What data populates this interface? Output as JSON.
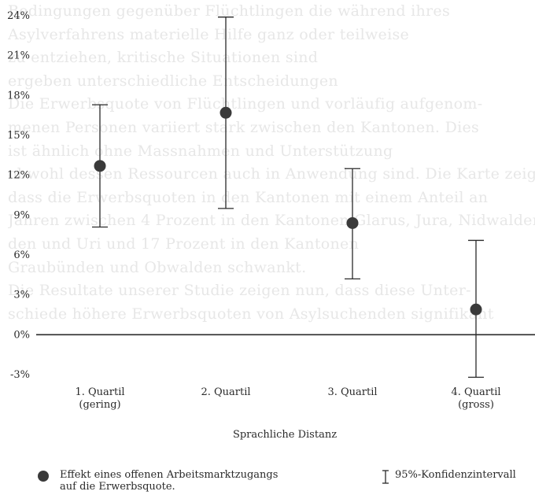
{
  "background_text": [
    "Bedingungen gegenüber Flüchtlingen die während ihres",
    "Asylverfahrens materielle Hilfe ganz oder teilweise",
    "zu entziehen, kritische Situationen sind",
    "ergeben unterschiedliche Entscheidungen",
    "Die Erwerbsquote von Flüchtlingen und vorläufig aufgenom-",
    "menen Personen variiert stark zwischen den Kantonen. Dies",
    "ist ähnlich ohne Massnahmen und Unterstützung",
    "obwohl dessen Ressourcen auch in Anwendung sind. Die Karte zeigt,",
    "dass die Erwerbsquoten in den Kantonen mit einem Anteil an",
    "Jahren zwischen 4 Prozent in den Kantonen Glarus, Jura, Nidwalden",
    "den und Uri und 17 Prozent in den Kantonen",
    "Graubünden und Obwalden schwankt.",
    "Die Resultate unserer Studie zeigen nun, dass diese Unter-",
    "schiede höhere Erwerbsquoten von Asylsuchenden signifikant"
  ],
  "chart_data": {
    "type": "errorbar",
    "categories": [
      [
        "1. Quartil",
        "(gering)"
      ],
      [
        "2. Quartil"
      ],
      [
        "3. Quartil"
      ],
      [
        "4. Quartil",
        "(gross)"
      ]
    ],
    "values": [
      12.7,
      16.7,
      8.4,
      1.9
    ],
    "ci_low": [
      8.1,
      9.5,
      4.2,
      -3.2
    ],
    "ci_high": [
      17.3,
      23.9,
      12.5,
      7.1
    ],
    "y_ticks": [
      -3,
      0,
      3,
      6,
      9,
      12,
      15,
      18,
      21,
      24
    ],
    "y_tick_labels": [
      "-3%",
      "0%",
      "3%",
      "6%",
      "9%",
      "12%",
      "15%",
      "18%",
      "21%",
      "24%"
    ],
    "ylim": [
      -3,
      24
    ],
    "xlabel": "Sprachliche Distanz",
    "reference_line": 0,
    "marker_color": "#3a3a3a",
    "line_color": "#2a2a2a"
  },
  "legend": {
    "point_label_line1": "Effekt eines offenen Arbeitsmarktzugangs",
    "point_label_line2": "auf die Erwerbsquote.",
    "ci_label": "95%-Konfidenzintervall"
  }
}
